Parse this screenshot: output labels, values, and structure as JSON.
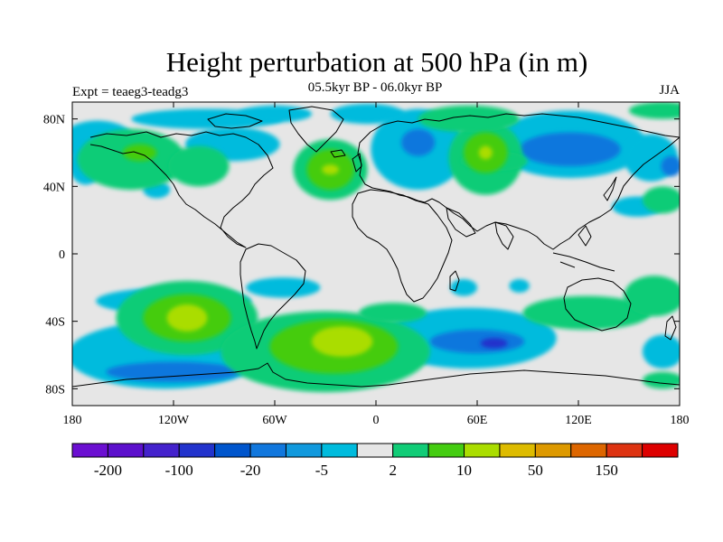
{
  "title": "Height perturbation at 500 hPa (in m)",
  "subtitle": "05.5kyr BP - 06.0kyr BP",
  "left_label": "Expt = teaeg3-teadg3",
  "right_label": "JJA",
  "map": {
    "projection": "cylindrical equidistant",
    "lon_range": [
      -180,
      180
    ],
    "lat_range": [
      -90,
      90
    ],
    "lat_ticks": [
      {
        "value": 80,
        "label": "80N"
      },
      {
        "value": 40,
        "label": "40N"
      },
      {
        "value": 0,
        "label": "0"
      },
      {
        "value": -40,
        "label": "40S"
      },
      {
        "value": -80,
        "label": "80S"
      }
    ],
    "lon_ticks": [
      {
        "value": -180,
        "label": "180"
      },
      {
        "value": -120,
        "label": "120W"
      },
      {
        "value": -60,
        "label": "60W"
      },
      {
        "value": 0,
        "label": "0"
      },
      {
        "value": 60,
        "label": "60E"
      },
      {
        "value": 120,
        "label": "120E"
      },
      {
        "value": 180,
        "label": "180"
      }
    ],
    "background_color": "#e6e6e6",
    "coastline_color": "#000000"
  },
  "colorbar": {
    "colors": [
      "#6b0fd1",
      "#5c10cc",
      "#4422cc",
      "#2233cc",
      "#0055cc",
      "#1177dd",
      "#1199dd",
      "#00bbdd",
      "#e6e6e6",
      "#11cc77",
      "#44cc11",
      "#aadd00",
      "#ddbb00",
      "#dd9900",
      "#dd6600",
      "#dd3311",
      "#dd0000"
    ],
    "labels": [
      {
        "text": "-200",
        "after_box": 1
      },
      {
        "text": "-100",
        "after_box": 3
      },
      {
        "text": "-20",
        "after_box": 5
      },
      {
        "text": "-5",
        "after_box": 7
      },
      {
        "text": "2",
        "after_box": 9
      },
      {
        "text": "10",
        "after_box": 11
      },
      {
        "text": "50",
        "after_box": 13
      },
      {
        "text": "150",
        "after_box": 15
      }
    ]
  },
  "regions": [
    {
      "level": "-5",
      "lon": -165,
      "lat": 67,
      "rx": 22,
      "ry": 12
    },
    {
      "level": "-5",
      "lon": -100,
      "lat": 80,
      "rx": 45,
      "ry": 6
    },
    {
      "level": "-5",
      "lon": -60,
      "lat": 83,
      "rx": 22,
      "ry": 5
    },
    {
      "level": "-5",
      "lon": -85,
      "lat": 65,
      "rx": 28,
      "ry": 10
    },
    {
      "level": "-5",
      "lon": -130,
      "lat": 38,
      "rx": 8,
      "ry": 5
    },
    {
      "level": "-5",
      "lon": -5,
      "lat": 83,
      "rx": 22,
      "ry": 6
    },
    {
      "level": "-5",
      "lon": 25,
      "lat": 62,
      "rx": 28,
      "ry": 24
    },
    {
      "level": "-5",
      "lon": 115,
      "lat": 65,
      "rx": 45,
      "ry": 20
    },
    {
      "level": "-5",
      "lon": 163,
      "lat": 57,
      "rx": 16,
      "ry": 14
    },
    {
      "level": "-5",
      "lon": -172,
      "lat": 53,
      "rx": 10,
      "ry": 12
    },
    {
      "level": "-5",
      "lon": 155,
      "lat": 28,
      "rx": 15,
      "ry": 6
    },
    {
      "level": "-5",
      "lon": -120,
      "lat": -28,
      "rx": 46,
      "ry": 8
    },
    {
      "level": "-5",
      "lon": -55,
      "lat": -20,
      "rx": 22,
      "ry": 6
    },
    {
      "level": "-5",
      "lon": -125,
      "lat": -60,
      "rx": 58,
      "ry": 20
    },
    {
      "level": "-5",
      "lon": 55,
      "lat": -50,
      "rx": 52,
      "ry": 18
    },
    {
      "level": "-5",
      "lon": 170,
      "lat": -58,
      "rx": 12,
      "ry": 10
    },
    {
      "level": "-5",
      "lon": 52,
      "lat": -20,
      "rx": 8,
      "ry": 5
    },
    {
      "level": "-5",
      "lon": 85,
      "lat": -19,
      "rx": 6,
      "ry": 4
    },
    {
      "level": "-20",
      "lon": 115,
      "lat": 62,
      "rx": 30,
      "ry": 10
    },
    {
      "level": "-20",
      "lon": 25,
      "lat": 66,
      "rx": 10,
      "ry": 8
    },
    {
      "level": "-20",
      "lon": 60,
      "lat": -52,
      "rx": 28,
      "ry": 7
    },
    {
      "level": "-20",
      "lon": -120,
      "lat": -70,
      "rx": 40,
      "ry": 6
    },
    {
      "level": "-20",
      "lon": 175,
      "lat": 52,
      "rx": 6,
      "ry": 6
    },
    {
      "level": "-100",
      "lon": 70,
      "lat": -53,
      "rx": 8,
      "ry": 3
    },
    {
      "level": "2",
      "lon": -145,
      "lat": 56,
      "rx": 32,
      "ry": 18
    },
    {
      "level": "2",
      "lon": -105,
      "lat": 52,
      "rx": 18,
      "ry": 12
    },
    {
      "level": "2",
      "lon": -27,
      "lat": 50,
      "rx": 22,
      "ry": 18
    },
    {
      "level": "2",
      "lon": 65,
      "lat": 57,
      "rx": 22,
      "ry": 22
    },
    {
      "level": "2",
      "lon": -112,
      "lat": -38,
      "rx": 42,
      "ry": 22
    },
    {
      "level": "2",
      "lon": -30,
      "lat": -58,
      "rx": 62,
      "ry": 24
    },
    {
      "level": "2",
      "lon": 170,
      "lat": 32,
      "rx": 12,
      "ry": 8
    },
    {
      "level": "2",
      "lon": 55,
      "lat": 80,
      "rx": 30,
      "ry": 8
    },
    {
      "level": "2",
      "lon": 170,
      "lat": 85,
      "rx": 20,
      "ry": 5
    },
    {
      "level": "2",
      "lon": 70,
      "lat": 55,
      "rx": 20,
      "ry": 6
    },
    {
      "level": "2",
      "lon": 125,
      "lat": -35,
      "rx": 38,
      "ry": 10
    },
    {
      "level": "2",
      "lon": 165,
      "lat": -25,
      "rx": 18,
      "ry": 12
    },
    {
      "level": "2",
      "lon": 10,
      "lat": -35,
      "rx": 20,
      "ry": 6
    },
    {
      "level": "2",
      "lon": 170,
      "lat": -75,
      "rx": 12,
      "ry": 5
    },
    {
      "level": "10",
      "lon": -140,
      "lat": 60,
      "rx": 10,
      "ry": 5
    },
    {
      "level": "10",
      "lon": -27,
      "lat": 50,
      "rx": 14,
      "ry": 12
    },
    {
      "level": "10",
      "lon": 65,
      "lat": 60,
      "rx": 13,
      "ry": 12
    },
    {
      "level": "10",
      "lon": -112,
      "lat": -38,
      "rx": 26,
      "ry": 14
    },
    {
      "level": "10",
      "lon": -25,
      "lat": -55,
      "rx": 38,
      "ry": 16
    },
    {
      "level": "50",
      "lon": -27,
      "lat": 50,
      "rx": 5,
      "ry": 3
    },
    {
      "level": "50",
      "lon": 65,
      "lat": 60,
      "rx": 4,
      "ry": 4
    },
    {
      "level": "50",
      "lon": -112,
      "lat": -38,
      "rx": 12,
      "ry": 8
    },
    {
      "level": "50",
      "lon": -20,
      "lat": -52,
      "rx": 18,
      "ry": 9
    }
  ]
}
